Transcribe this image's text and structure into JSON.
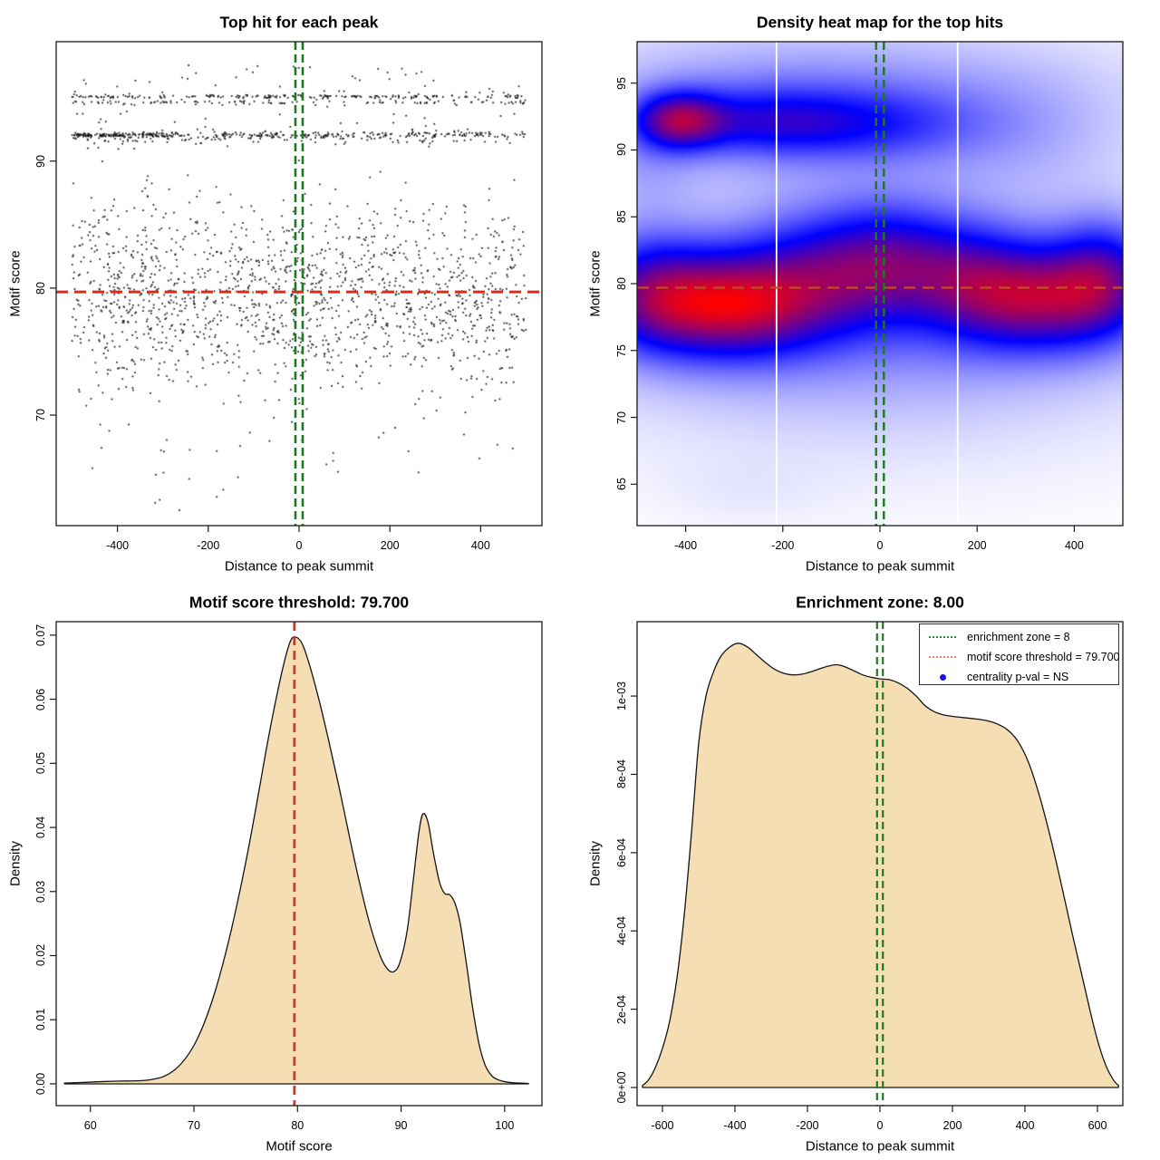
{
  "colors": {
    "background": "#ffffff",
    "frame": "#1a1a1a",
    "text": "#000000",
    "scatter_points": "#161616",
    "threshold_red": "#DC2B1B",
    "threshold_red_density": "#CC392B",
    "threshold_orange_on_heat": "#C04828",
    "enrichment_green": "#1E7A1E",
    "legend_green": "#2E8B2E",
    "legend_red": "#E4837A",
    "legend_blue": "#1414E8",
    "density_fill": "#F5DEB3",
    "curve_stroke": "#141414",
    "heat_colormap": [
      "#FFFFFF",
      "#0000FF",
      "#FF0000"
    ]
  },
  "chart_data": [
    {
      "type": "scatter",
      "title": "Top hit for each peak",
      "xlabel": "Distance to peak summit",
      "ylabel": "Motif score",
      "xlim": [
        -535,
        535
      ],
      "ylim": [
        61.3,
        99.4
      ],
      "x_ticks": [
        -400,
        -200,
        0,
        200,
        400
      ],
      "y_ticks": [
        70,
        80,
        90
      ],
      "threshold_line_y": 79.7,
      "enrichment_zone_x": [
        -8,
        8
      ],
      "seed": 1337,
      "point_clusters": [
        {
          "n": 1560,
          "x": [
            "unif",
            -500,
            500
          ],
          "y": [
            "norm",
            79.2,
            3.7
          ],
          "yclip": [
            68.3,
            90.9
          ]
        },
        {
          "n": 150,
          "x": [
            "unif",
            -500,
            -290
          ],
          "y": [
            "norm",
            92.03,
            0.1
          ]
        },
        {
          "n": 160,
          "x": [
            "unif",
            -290,
            190
          ],
          "y": [
            "norm",
            92.03,
            0.12
          ]
        },
        {
          "n": 80,
          "x": [
            "unif",
            190,
            500
          ],
          "y": [
            "norm",
            92.05,
            0.12
          ]
        },
        {
          "n": 55,
          "x": [
            "unif",
            -500,
            500
          ],
          "y": [
            "norm",
            91.62,
            0.1
          ]
        },
        {
          "n": 195,
          "x": [
            "unif",
            -500,
            500
          ],
          "y": [
            "norm",
            95.08,
            0.07
          ]
        },
        {
          "n": 105,
          "x": [
            "unif",
            -500,
            500
          ],
          "y": [
            "norm",
            94.62,
            0.09
          ]
        },
        {
          "n": 120,
          "x": [
            "unif",
            -500,
            500
          ],
          "y": [
            "unif",
            90.9,
            97.6
          ]
        },
        {
          "n": 22,
          "x": [
            "unif",
            -500,
            500
          ],
          "y": [
            "unif",
            65.3,
            68.3
          ]
        },
        {
          "n": 7,
          "x": [
            "unif",
            -460,
            -120
          ],
          "y": [
            "unif",
            62.5,
            65.3
          ]
        }
      ]
    },
    {
      "type": "heatmap",
      "title": "Density heat map for the top hits",
      "xlabel": "Distance to peak summit",
      "ylabel": "Motif score",
      "xlim": [
        -500,
        500
      ],
      "ylim": [
        61.9,
        98.1
      ],
      "x_ticks": [
        -400,
        -200,
        0,
        200,
        400
      ],
      "y_ticks": [
        65,
        70,
        75,
        80,
        85,
        90,
        95
      ],
      "threshold_line_y": 79.7,
      "enrichment_zone_x": [
        -8,
        8
      ],
      "white_gridlines_x": [
        -213,
        160
      ],
      "density_blobs": [
        [
          -310,
          78.4,
          125,
          2.7,
          1.0
        ],
        [
          -480,
          79.3,
          90,
          3.0,
          0.6
        ],
        [
          -120,
          80.8,
          110,
          3.2,
          0.45
        ],
        [
          30,
          81.8,
          100,
          3.0,
          0.52
        ],
        [
          190,
          80.2,
          90,
          2.9,
          0.48
        ],
        [
          330,
          78.9,
          105,
          2.7,
          0.78
        ],
        [
          465,
          80.3,
          75,
          3.0,
          0.68
        ],
        [
          0,
          78.8,
          430,
          5.2,
          0.3
        ],
        [
          -30,
          76.5,
          470,
          7.5,
          0.14
        ],
        [
          -415,
          92.2,
          65,
          1.5,
          0.85
        ],
        [
          -250,
          92.1,
          115,
          1.7,
          0.3
        ],
        [
          -60,
          91.9,
          165,
          1.8,
          0.36
        ],
        [
          -150,
          92.6,
          330,
          3.4,
          0.3
        ],
        [
          300,
          91.0,
          170,
          3.4,
          0.12
        ],
        [
          -80,
          96.0,
          500,
          3.5,
          0.12
        ],
        [
          -480,
          88.5,
          70,
          2.6,
          0.13
        ],
        [
          -280,
          64.5,
          115,
          1.7,
          0.04
        ]
      ]
    },
    {
      "type": "area",
      "title": "Motif score threshold: 79.700",
      "xlabel": "Motif score",
      "ylabel": "Density",
      "xlim": [
        56.7,
        103.6
      ],
      "ylim": [
        -0.0034,
        0.0721
      ],
      "x_ticks": [
        60,
        70,
        80,
        90,
        100
      ],
      "y_ticks": [
        0,
        0.01,
        0.02,
        0.03,
        0.04,
        0.05,
        0.06,
        0.07
      ],
      "y_tick_labels": [
        "0.00",
        "0.01",
        "0.02",
        "0.03",
        "0.04",
        "0.05",
        "0.06",
        "0.07"
      ],
      "threshold_line_x": 79.7,
      "curve": [
        [
          57.5,
          0.00012
        ],
        [
          59,
          0.0002
        ],
        [
          60.5,
          0.0003
        ],
        [
          62,
          0.0004
        ],
        [
          63.5,
          0.00045
        ],
        [
          65,
          0.0005
        ],
        [
          66,
          0.0007
        ],
        [
          67,
          0.0011
        ],
        [
          68,
          0.002
        ],
        [
          69,
          0.0036
        ],
        [
          70,
          0.006
        ],
        [
          71,
          0.0095
        ],
        [
          72,
          0.0142
        ],
        [
          73,
          0.02
        ],
        [
          74,
          0.0268
        ],
        [
          75,
          0.0345
        ],
        [
          76,
          0.0432
        ],
        [
          77,
          0.0523
        ],
        [
          77.8,
          0.059
        ],
        [
          78.6,
          0.065
        ],
        [
          79.3,
          0.069
        ],
        [
          79.8,
          0.0697
        ],
        [
          80.4,
          0.0688
        ],
        [
          81,
          0.0662
        ],
        [
          82,
          0.0604
        ],
        [
          83,
          0.0536
        ],
        [
          84,
          0.0464
        ],
        [
          85,
          0.0387
        ],
        [
          86,
          0.0313
        ],
        [
          87,
          0.0248
        ],
        [
          88,
          0.0199
        ],
        [
          88.7,
          0.0179
        ],
        [
          89.3,
          0.0175
        ],
        [
          89.9,
          0.019
        ],
        [
          90.6,
          0.024
        ],
        [
          91.2,
          0.0321
        ],
        [
          91.7,
          0.039
        ],
        [
          92.1,
          0.0421
        ],
        [
          92.6,
          0.0408
        ],
        [
          93.1,
          0.0362
        ],
        [
          93.7,
          0.0315
        ],
        [
          94.2,
          0.0297
        ],
        [
          94.7,
          0.0295
        ],
        [
          95.2,
          0.0282
        ],
        [
          95.7,
          0.0251
        ],
        [
          96.3,
          0.0188
        ],
        [
          96.9,
          0.012
        ],
        [
          97.5,
          0.0064
        ],
        [
          98.1,
          0.003
        ],
        [
          98.8,
          0.0012
        ],
        [
          99.6,
          0.0005
        ],
        [
          100.6,
          0.0002
        ],
        [
          101.6,
          0.0001
        ],
        [
          102.3,
          6e-05
        ]
      ]
    },
    {
      "type": "area",
      "title": "Enrichment zone: 8.00",
      "xlabel": "Distance to peak summit",
      "ylabel": "Density",
      "xlim": [
        -670,
        670
      ],
      "ylim": [
        -4.63e-05,
        0.00119
      ],
      "x_ticks": [
        -600,
        -400,
        -200,
        0,
        200,
        400,
        600
      ],
      "y_ticks": [
        0,
        0.0002,
        0.0004,
        0.0006,
        0.0008,
        0.001
      ],
      "y_tick_labels": [
        "0e+00",
        "2e-04",
        "4e-04",
        "6e-04",
        "8e-04",
        "1e-03"
      ],
      "enrichment_zone_x": [
        -8,
        8
      ],
      "curve": [
        [
          -655,
          5e-06
        ],
        [
          -638,
          2e-05
        ],
        [
          -620,
          5e-05
        ],
        [
          -600,
          0.0001
        ],
        [
          -580,
          0.00017
        ],
        [
          -560,
          0.00028
        ],
        [
          -540,
          0.00044
        ],
        [
          -520,
          0.00065
        ],
        [
          -500,
          0.00088
        ],
        [
          -480,
          0.001
        ],
        [
          -460,
          0.00106
        ],
        [
          -440,
          0.0011
        ],
        [
          -415,
          0.001125
        ],
        [
          -390,
          0.001135
        ],
        [
          -365,
          0.001125
        ],
        [
          -340,
          0.001105
        ],
        [
          -315,
          0.001085
        ],
        [
          -290,
          0.001068
        ],
        [
          -265,
          0.001058
        ],
        [
          -240,
          0.001054
        ],
        [
          -215,
          0.001056
        ],
        [
          -190,
          0.001062
        ],
        [
          -165,
          0.00107
        ],
        [
          -140,
          0.001077
        ],
        [
          -120,
          0.00108
        ],
        [
          -100,
          0.001076
        ],
        [
          -75,
          0.001066
        ],
        [
          -50,
          0.001055
        ],
        [
          -25,
          0.001048
        ],
        [
          0,
          0.001044
        ],
        [
          25,
          0.001042
        ],
        [
          50,
          0.001034
        ],
        [
          75,
          0.00102
        ],
        [
          100,
          0.001
        ],
        [
          125,
          0.000975
        ],
        [
          150,
          0.00096
        ],
        [
          175,
          0.000952
        ],
        [
          200,
          0.000948
        ],
        [
          230,
          0.000945
        ],
        [
          260,
          0.000942
        ],
        [
          290,
          0.000938
        ],
        [
          320,
          0.00093
        ],
        [
          350,
          0.000915
        ],
        [
          380,
          0.000885
        ],
        [
          410,
          0.00083
        ],
        [
          440,
          0.000745
        ],
        [
          470,
          0.00064
        ],
        [
          500,
          0.00052
        ],
        [
          530,
          0.000395
        ],
        [
          560,
          0.000275
        ],
        [
          585,
          0.000175
        ],
        [
          605,
          0.000105
        ],
        [
          625,
          5.2e-05
        ],
        [
          645,
          1.8e-05
        ],
        [
          658,
          5e-06
        ]
      ],
      "legend": {
        "position": "top-right",
        "items": [
          {
            "symbol": "dotted-line",
            "color_key": "legend_green",
            "label": "enrichment zone = 8"
          },
          {
            "symbol": "dotted-line",
            "color_key": "legend_red",
            "label": "motif score threshold = 79.700"
          },
          {
            "symbol": "point",
            "color_key": "legend_blue",
            "label": "centrality p-val = NS"
          }
        ]
      }
    }
  ]
}
